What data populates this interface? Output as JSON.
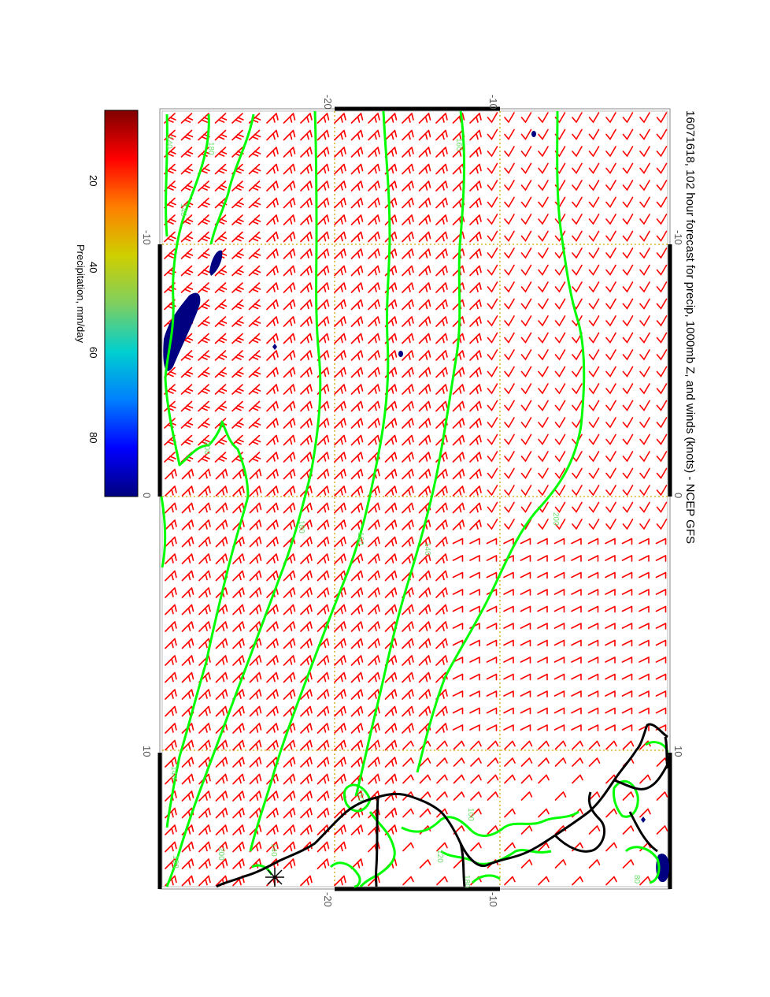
{
  "title": "16071618, 102 hour forecast for precip, 1000mb Z, and winds (knots) - NCEP GFS",
  "colorbar": {
    "label": "Precipitation, mm/day",
    "ticks": [
      "20",
      "40",
      "60",
      "80"
    ],
    "colors": [
      "#00007f",
      "#0000ff",
      "#007fff",
      "#00cfcf",
      "#7fcf5f",
      "#cfcf00",
      "#ff7f00",
      "#ff0000",
      "#7f0000"
    ]
  },
  "axes": {
    "top_labels": [
      "-20",
      "-10"
    ],
    "bottom_labels": [
      "-20",
      "-10"
    ],
    "left_labels": [
      "-10",
      "0",
      "10"
    ],
    "right_labels": [
      "-10",
      "0",
      "10"
    ]
  },
  "contour_labels": [
    "140",
    "180",
    "200",
    "180",
    "160",
    "140",
    "200",
    "140",
    "160",
    "180",
    "200",
    "140",
    "180",
    "160",
    "100",
    "120",
    "80",
    "140"
  ],
  "colors": {
    "wind_barbs": "#ff0000",
    "contours": "#00ff00",
    "coastline": "#000000",
    "gridlines": "#d4a800",
    "precip": "#000080"
  },
  "icons": {
    "marker": "asterisk-marker-icon"
  }
}
